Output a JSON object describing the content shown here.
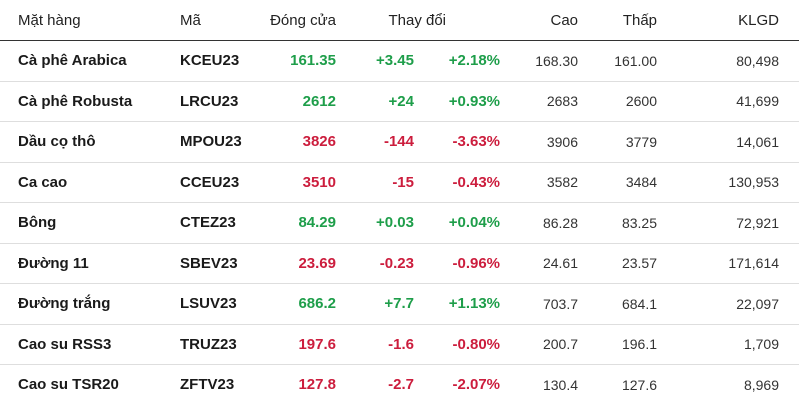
{
  "colors": {
    "up": "#1e9e4a",
    "down": "#cc1d3d"
  },
  "headers": {
    "name": "Mặt hàng",
    "code": "Mã",
    "close": "Đóng cửa",
    "change": "Thay đổi",
    "high": "Cao",
    "low": "Thấp",
    "volume": "KLGD"
  },
  "rows": [
    {
      "name": "Cà phê Arabica",
      "code": "KCEU23",
      "close": "161.35",
      "change": "+3.45",
      "pct": "+2.18%",
      "high": "168.30",
      "low": "161.00",
      "volume": "80,498",
      "dir": "up"
    },
    {
      "name": "Cà phê Robusta",
      "code": "LRCU23",
      "close": "2612",
      "change": "+24",
      "pct": "+0.93%",
      "high": "2683",
      "low": "2600",
      "volume": "41,699",
      "dir": "up"
    },
    {
      "name": "Dầu cọ thô",
      "code": "MPOU23",
      "close": "3826",
      "change": "-144",
      "pct": "-3.63%",
      "high": "3906",
      "low": "3779",
      "volume": "14,061",
      "dir": "down"
    },
    {
      "name": "Ca cao",
      "code": "CCEU23",
      "close": "3510",
      "change": "-15",
      "pct": "-0.43%",
      "high": "3582",
      "low": "3484",
      "volume": "130,953",
      "dir": "down"
    },
    {
      "name": "Bông",
      "code": "CTEZ23",
      "close": "84.29",
      "change": "+0.03",
      "pct": "+0.04%",
      "high": "86.28",
      "low": "83.25",
      "volume": "72,921",
      "dir": "up"
    },
    {
      "name": "Đường 11",
      "code": "SBEV23",
      "close": "23.69",
      "change": "-0.23",
      "pct": "-0.96%",
      "high": "24.61",
      "low": "23.57",
      "volume": "171,614",
      "dir": "down"
    },
    {
      "name": "Đường trắng",
      "code": "LSUV23",
      "close": "686.2",
      "change": "+7.7",
      "pct": "+1.13%",
      "high": "703.7",
      "low": "684.1",
      "volume": "22,097",
      "dir": "up"
    },
    {
      "name": "Cao su RSS3",
      "code": "TRUZ23",
      "close": "197.6",
      "change": "-1.6",
      "pct": "-0.80%",
      "high": "200.7",
      "low": "196.1",
      "volume": "1,709",
      "dir": "down"
    },
    {
      "name": "Cao su TSR20",
      "code": "ZFTV23",
      "close": "127.8",
      "change": "-2.7",
      "pct": "-2.07%",
      "high": "130.4",
      "low": "127.6",
      "volume": "8,969",
      "dir": "down"
    }
  ]
}
